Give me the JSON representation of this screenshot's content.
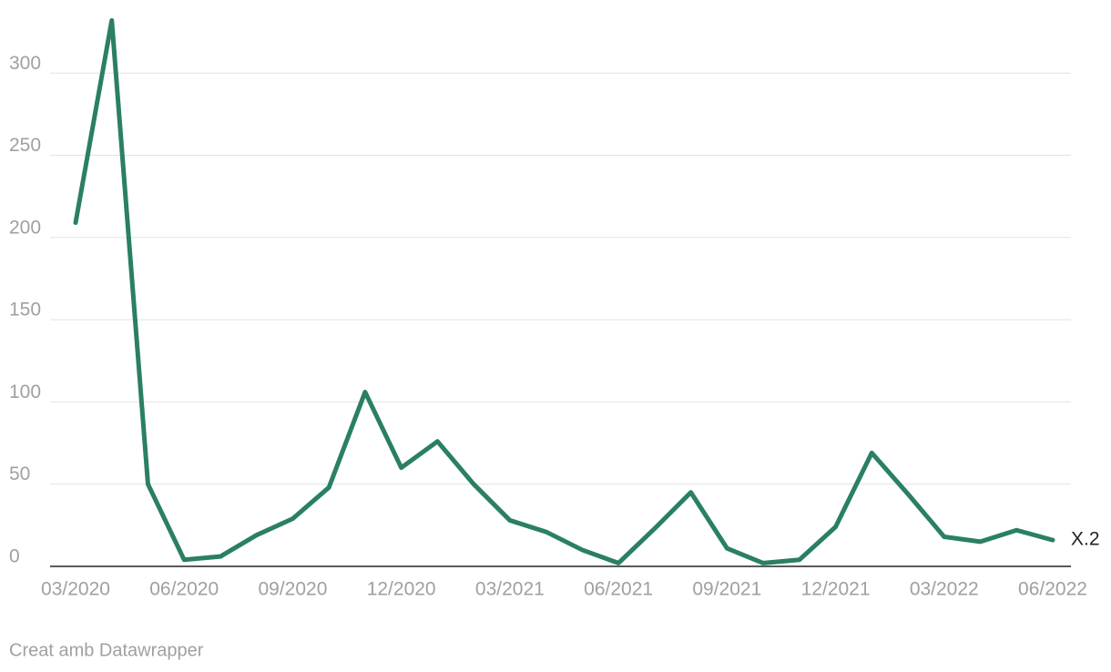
{
  "chart_data": {
    "type": "line",
    "categories": [
      "03/2020",
      null,
      null,
      "06/2020",
      null,
      null,
      "09/2020",
      null,
      null,
      "12/2020",
      null,
      null,
      "03/2021",
      null,
      null,
      "06/2021",
      null,
      null,
      "09/2021",
      null,
      null,
      "12/2021",
      null,
      null,
      "03/2022",
      null,
      null,
      "06/2022"
    ],
    "series": [
      {
        "name": "X.2",
        "color": "#2a7f66",
        "values": [
          209,
          332,
          50,
          4,
          6,
          19,
          29,
          48,
          106,
          60,
          76,
          50,
          28,
          21,
          10,
          2,
          23,
          45,
          11,
          2,
          4,
          24,
          69,
          44,
          18,
          15,
          22,
          16
        ]
      }
    ],
    "ylim": [
      0,
      335
    ],
    "yticks": [
      0,
      50,
      100,
      150,
      200,
      250,
      300
    ],
    "grid": true,
    "footer": "Creat amb Datawrapper"
  }
}
